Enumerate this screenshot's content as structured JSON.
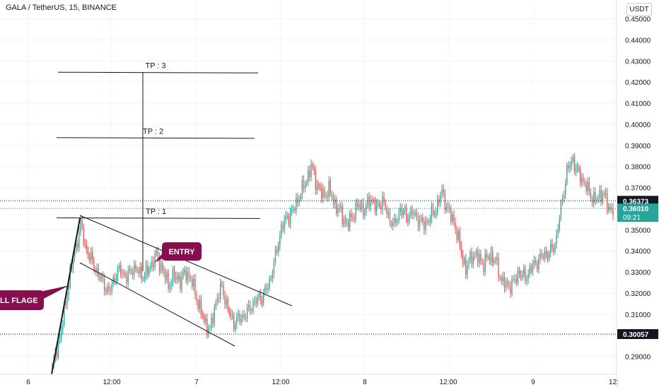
{
  "header": {
    "symbol_title": "GALA / TetherUS, 15, BINANCE",
    "currency": "USDT"
  },
  "colors": {
    "up": "#26a69a",
    "down": "#ef5350",
    "annotation": "#880e4f",
    "grid": "#f0f3fa",
    "axis_text": "#131722",
    "price_badge": "#131722",
    "last_price_badge": "#26a69a"
  },
  "chart_data": {
    "type": "candlestick",
    "title": "",
    "x_tick_labels": [
      "6",
      "12:00",
      "7",
      "12:00",
      "8",
      "12:00",
      "9",
      "12:"
    ],
    "y_ticks": [
      "0.29000",
      "0.30000",
      "0.31000",
      "0.32000",
      "0.33000",
      "0.34000",
      "0.35000",
      "0.36000",
      "0.37000",
      "0.38000",
      "0.39000",
      "0.40000",
      "0.41000",
      "0.42000",
      "0.43000",
      "0.44000",
      "0.45000"
    ],
    "ylim": [
      0.2815,
      0.4542
    ],
    "grid": true,
    "price_markers": [
      {
        "label": "0.36373",
        "value": 0.36373,
        "style": "dotted"
      },
      {
        "label": "0.30057",
        "value": 0.30057,
        "style": "dotted"
      }
    ],
    "last_price": {
      "label": "0.36010",
      "countdown": "09:21",
      "value": 0.3601
    },
    "annotations": [
      {
        "text": "TP : 3",
        "value": 0.4245
      },
      {
        "text": "TP : 2",
        "value": 0.3935
      },
      {
        "text": "TP : 1",
        "value": 0.3555
      },
      {
        "text": "ENTRY",
        "value": 0.3425
      },
      {
        "text": "LL FLAGE",
        "value": 0.3105
      }
    ],
    "close_path": [
      [
        0,
        0.2845
      ],
      [
        4,
        0.296
      ],
      [
        8,
        0.31
      ],
      [
        12,
        0.33
      ],
      [
        16,
        0.342
      ],
      [
        19,
        0.353
      ],
      [
        22,
        0.342
      ],
      [
        26,
        0.336
      ],
      [
        30,
        0.33
      ],
      [
        34,
        0.325
      ],
      [
        38,
        0.32
      ],
      [
        42,
        0.328
      ],
      [
        46,
        0.331
      ],
      [
        50,
        0.327
      ],
      [
        54,
        0.332
      ],
      [
        58,
        0.33
      ],
      [
        62,
        0.328
      ],
      [
        66,
        0.333
      ],
      [
        70,
        0.338
      ],
      [
        74,
        0.331
      ],
      [
        78,
        0.324
      ],
      [
        82,
        0.328
      ],
      [
        86,
        0.326
      ],
      [
        90,
        0.33
      ],
      [
        94,
        0.325
      ],
      [
        98,
        0.315
      ],
      [
        102,
        0.307
      ],
      [
        106,
        0.302
      ],
      [
        110,
        0.316
      ],
      [
        114,
        0.323
      ],
      [
        118,
        0.312
      ],
      [
        122,
        0.306
      ],
      [
        126,
        0.308
      ],
      [
        130,
        0.31
      ],
      [
        134,
        0.314
      ],
      [
        138,
        0.317
      ],
      [
        142,
        0.319
      ],
      [
        146,
        0.325
      ],
      [
        150,
        0.337
      ],
      [
        154,
        0.351
      ],
      [
        158,
        0.356
      ],
      [
        162,
        0.359
      ],
      [
        166,
        0.366
      ],
      [
        170,
        0.372
      ],
      [
        174,
        0.38
      ],
      [
        178,
        0.371
      ],
      [
        182,
        0.366
      ],
      [
        186,
        0.369
      ],
      [
        190,
        0.362
      ],
      [
        194,
        0.358
      ],
      [
        198,
        0.352
      ],
      [
        202,
        0.357
      ],
      [
        206,
        0.362
      ],
      [
        210,
        0.359
      ],
      [
        214,
        0.365
      ],
      [
        218,
        0.36
      ],
      [
        222,
        0.364
      ],
      [
        226,
        0.356
      ],
      [
        230,
        0.352
      ],
      [
        234,
        0.36
      ],
      [
        238,
        0.356
      ],
      [
        242,
        0.358
      ],
      [
        246,
        0.355
      ],
      [
        250,
        0.352
      ],
      [
        254,
        0.356
      ],
      [
        258,
        0.36
      ],
      [
        262,
        0.368
      ],
      [
        266,
        0.359
      ],
      [
        270,
        0.354
      ],
      [
        274,
        0.342
      ],
      [
        278,
        0.331
      ],
      [
        282,
        0.338
      ],
      [
        286,
        0.337
      ],
      [
        290,
        0.334
      ],
      [
        294,
        0.338
      ],
      [
        298,
        0.335
      ],
      [
        302,
        0.326
      ],
      [
        306,
        0.323
      ],
      [
        310,
        0.325
      ],
      [
        314,
        0.33
      ],
      [
        318,
        0.327
      ],
      [
        322,
        0.332
      ],
      [
        326,
        0.335
      ],
      [
        330,
        0.338
      ],
      [
        334,
        0.339
      ],
      [
        338,
        0.343
      ],
      [
        342,
        0.36
      ],
      [
        346,
        0.378
      ],
      [
        350,
        0.383
      ],
      [
        354,
        0.376
      ],
      [
        358,
        0.372
      ],
      [
        362,
        0.366
      ],
      [
        366,
        0.364
      ],
      [
        370,
        0.368
      ],
      [
        374,
        0.36
      ],
      [
        377,
        0.3601
      ]
    ],
    "candle_count": 378
  }
}
